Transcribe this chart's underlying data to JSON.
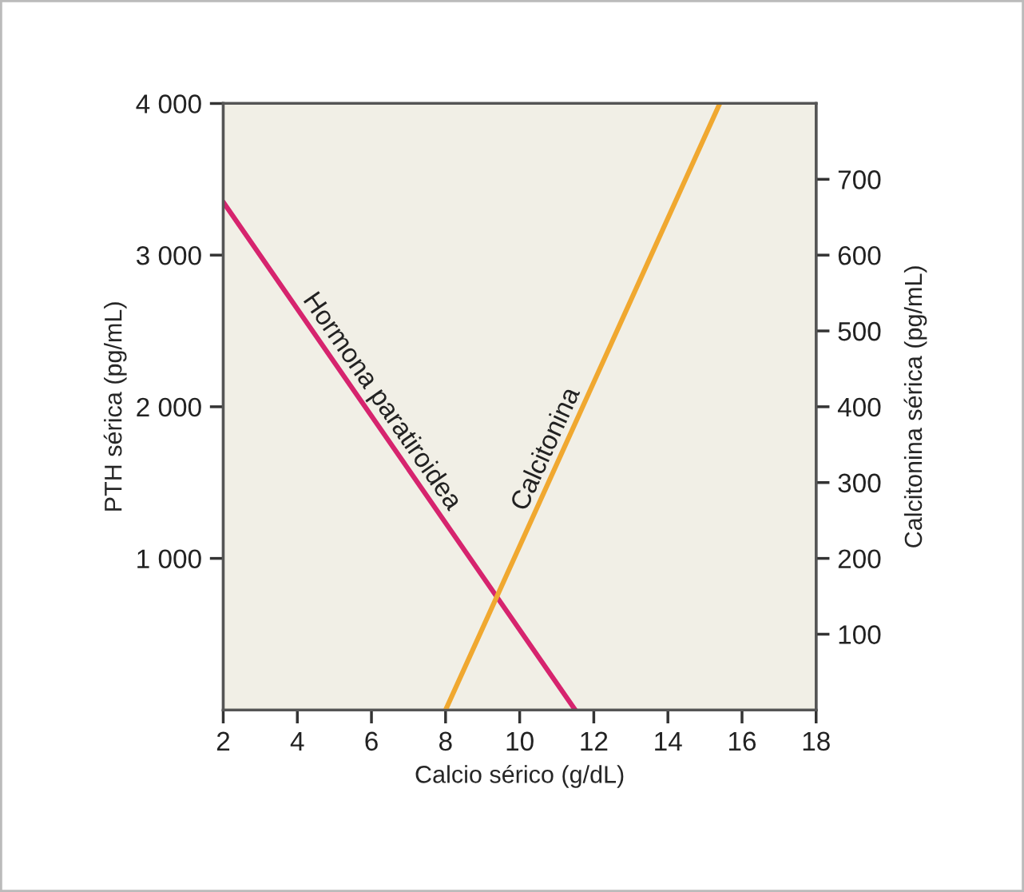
{
  "chart_data": {
    "type": "line",
    "xlabel": "Calcio sérico (g/dL)",
    "ylabel": "PTH sérica (pg/mL)",
    "y2label": "Calcitonina sérica (pg/mL)",
    "xlim": [
      2,
      18
    ],
    "xticks": [
      2,
      4,
      6,
      8,
      10,
      12,
      14,
      16,
      18
    ],
    "ylim": [
      0,
      4000
    ],
    "yticks": [
      {
        "value": 1000,
        "label": "1 000"
      },
      {
        "value": 2000,
        "label": "2 000"
      },
      {
        "value": 3000,
        "label": "3 000"
      },
      {
        "value": 4000,
        "label": "4 000"
      }
    ],
    "y2lim": [
      0,
      800
    ],
    "y2ticks": [
      100,
      200,
      300,
      400,
      500,
      600,
      700
    ],
    "series": [
      {
        "name": "Hormona paratiroidea",
        "color": "#d6246e",
        "x": [
          2,
          11.5
        ],
        "values": [
          3350,
          0
        ]
      },
      {
        "name": "Calcitonina",
        "color": "#f0a830",
        "axis": "y2",
        "x": [
          8,
          15.4
        ],
        "values": [
          0,
          800
        ]
      }
    ]
  }
}
